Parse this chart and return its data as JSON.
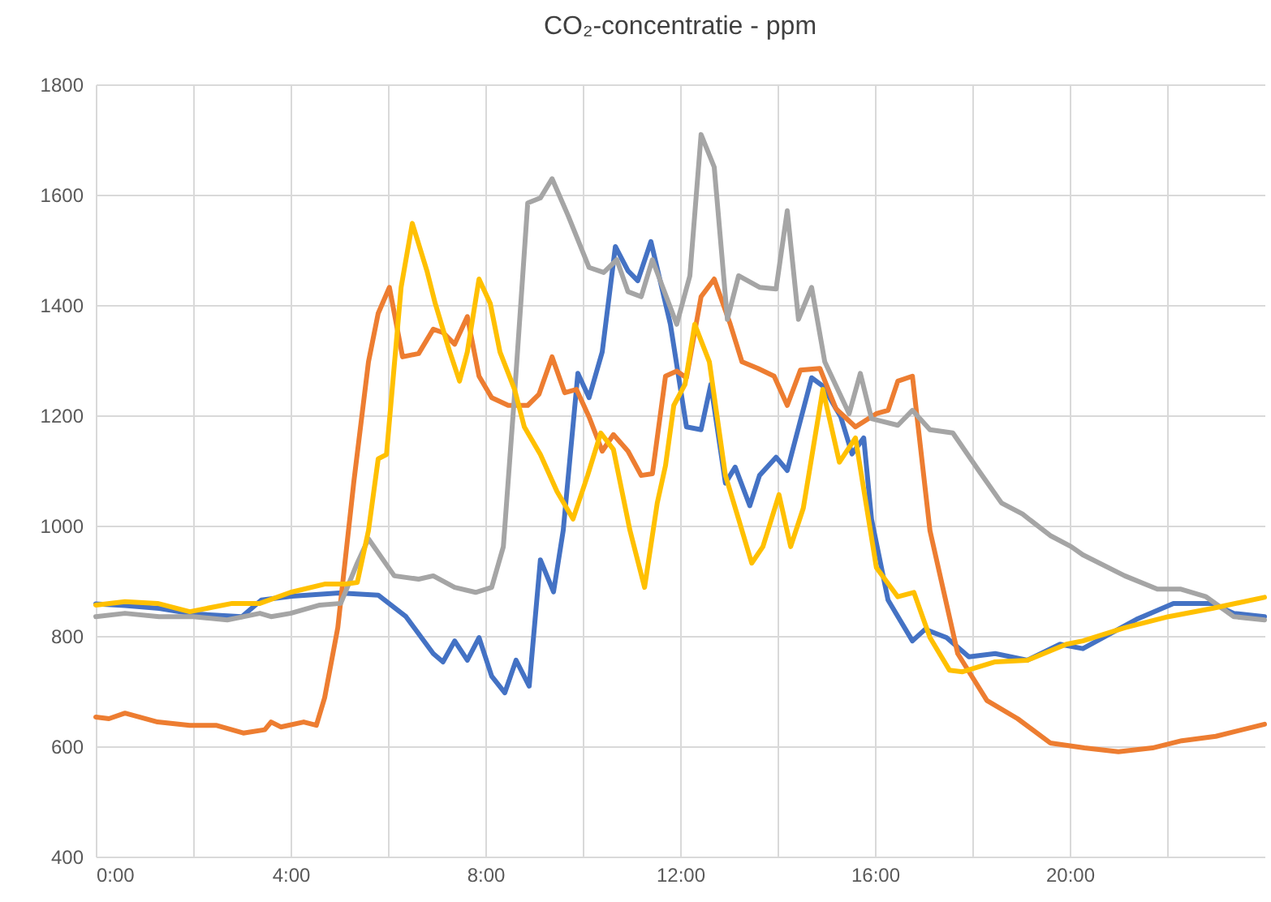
{
  "chart_data": {
    "type": "line",
    "title": "CO₂-concentratie - ppm",
    "xlim": [
      0,
      24
    ],
    "ylim": [
      400,
      1800
    ],
    "xticks": [
      {
        "value": 0,
        "label": "0:00"
      },
      {
        "value": 2,
        "label": null
      },
      {
        "value": 4,
        "label": "4:00"
      },
      {
        "value": 6,
        "label": null
      },
      {
        "value": 8,
        "label": "8:00"
      },
      {
        "value": 10,
        "label": null
      },
      {
        "value": 12,
        "label": "12:00"
      },
      {
        "value": 14,
        "label": null
      },
      {
        "value": 16,
        "label": "16:00"
      },
      {
        "value": 18,
        "label": null
      },
      {
        "value": 20,
        "label": "20:00"
      },
      {
        "value": 22,
        "label": null
      }
    ],
    "yticks": [
      400,
      600,
      800,
      1000,
      1200,
      1400,
      1600,
      1800
    ],
    "grid": true,
    "line_style": "solid",
    "series": [
      {
        "color": "#4472c4",
        "x": [
          0,
          0.6,
          1.3,
          2,
          3,
          3.4,
          4.03,
          5,
          5.8,
          6.37,
          6.93,
          7.13,
          7.37,
          7.63,
          7.87,
          8.13,
          8.4,
          8.63,
          8.9,
          9.13,
          9.4,
          9.6,
          9.9,
          10.13,
          10.4,
          10.67,
          10.93,
          11.13,
          11.4,
          11.8,
          12.13,
          12.43,
          12.63,
          12.93,
          13.13,
          13.43,
          13.63,
          13.97,
          14.2,
          14.7,
          14.93,
          15.3,
          15.53,
          15.77,
          15.93,
          16.27,
          16.77,
          17.03,
          17.47,
          17.93,
          18.47,
          19.13,
          19.8,
          20.27,
          21.37,
          22.13,
          22.93,
          23.37,
          24
        ],
        "values": [
          858,
          855,
          850,
          840,
          835,
          865,
          872,
          878,
          874,
          835,
          768,
          753,
          791,
          756,
          797,
          727,
          697,
          756,
          709,
          938,
          880,
          992,
          1276,
          1232,
          1315,
          1506,
          1462,
          1444,
          1515,
          1365,
          1179,
          1174,
          1256,
          1077,
          1106,
          1036,
          1091,
          1124,
          1100,
          1268,
          1253,
          1197,
          1130,
          1159,
          1012,
          865,
          791,
          812,
          797,
          762,
          768,
          756,
          785,
          777,
          830,
          859,
          859,
          841,
          835
        ]
      },
      {
        "color": "#ed7d31",
        "x": [
          0,
          0.27,
          0.6,
          1.27,
          1.93,
          2.47,
          3.03,
          3.47,
          3.6,
          3.8,
          4.27,
          4.53,
          4.7,
          4.97,
          5.3,
          5.6,
          5.8,
          6.03,
          6.3,
          6.63,
          6.93,
          7.13,
          7.37,
          7.63,
          7.87,
          8.13,
          8.47,
          8.87,
          9.1,
          9.37,
          9.63,
          9.87,
          10.13,
          10.4,
          10.63,
          10.93,
          11.2,
          11.43,
          11.7,
          11.93,
          12.13,
          12.43,
          12.7,
          13.03,
          13.27,
          13.6,
          13.93,
          14.2,
          14.47,
          14.87,
          15.2,
          15.6,
          16.03,
          16.27,
          16.47,
          16.77,
          17.13,
          17.7,
          18.3,
          18.93,
          19.6,
          20.3,
          21,
          21.7,
          22.3,
          23,
          24
        ],
        "values": [
          653,
          650,
          660,
          644,
          638,
          638,
          624,
          630,
          644,
          635,
          644,
          638,
          688,
          815,
          1080,
          1297,
          1385,
          1432,
          1306,
          1312,
          1356,
          1350,
          1329,
          1379,
          1271,
          1232,
          1218,
          1218,
          1238,
          1306,
          1241,
          1247,
          1197,
          1135,
          1165,
          1135,
          1091,
          1094,
          1271,
          1280,
          1268,
          1415,
          1447,
          1365,
          1297,
          1285,
          1271,
          1218,
          1282,
          1285,
          1212,
          1179,
          1203,
          1209,
          1262,
          1271,
          991,
          768,
          683,
          650,
          606,
          597,
          590,
          597,
          610,
          618,
          640
        ]
      },
      {
        "color": "#a5a5a5",
        "x": [
          0,
          0.6,
          1.3,
          2,
          2.7,
          3.37,
          3.6,
          4,
          4.6,
          5.03,
          5.37,
          5.6,
          6.13,
          6.63,
          6.93,
          7.37,
          7.8,
          8.13,
          8.37,
          8.6,
          8.87,
          9.13,
          9.37,
          9.7,
          10.13,
          10.43,
          10.7,
          10.93,
          11.2,
          11.43,
          11.93,
          12.2,
          12.43,
          12.7,
          12.97,
          13.2,
          13.63,
          13.97,
          14.2,
          14.43,
          14.7,
          14.97,
          15.47,
          15.7,
          15.93,
          16.47,
          16.77,
          17.13,
          17.6,
          18.13,
          18.6,
          19.03,
          19.6,
          20.03,
          20.27,
          21.13,
          21.8,
          22.27,
          22.8,
          23.37,
          24
        ],
        "values": [
          835,
          841,
          835,
          835,
          829,
          841,
          835,
          841,
          856,
          859,
          932,
          976,
          909,
          903,
          909,
          888,
          879,
          888,
          962,
          1238,
          1585,
          1594,
          1629,
          1562,
          1468,
          1459,
          1482,
          1424,
          1415,
          1482,
          1365,
          1453,
          1709,
          1650,
          1374,
          1453,
          1432,
          1429,
          1571,
          1374,
          1432,
          1297,
          1203,
          1276,
          1194,
          1182,
          1209,
          1174,
          1168,
          1100,
          1041,
          1021,
          982,
          962,
          947,
          909,
          885,
          885,
          871,
          835,
          829
        ]
      },
      {
        "color": "#ffc000",
        "x": [
          0,
          0.6,
          1.27,
          1.93,
          2.8,
          3.37,
          4,
          4.7,
          5.13,
          5.37,
          5.6,
          5.8,
          5.97,
          6.27,
          6.5,
          6.8,
          6.97,
          7.27,
          7.47,
          7.63,
          7.87,
          8.1,
          8.3,
          8.6,
          8.8,
          9.13,
          9.47,
          9.8,
          10.1,
          10.37,
          10.63,
          10.97,
          11.27,
          11.53,
          11.7,
          11.87,
          12.1,
          12.3,
          12.6,
          12.93,
          13.2,
          13.47,
          13.7,
          14.03,
          14.27,
          14.53,
          14.93,
          15.27,
          15.6,
          16.03,
          16.47,
          16.8,
          17.13,
          17.53,
          17.8,
          18.47,
          19.13,
          19.93,
          20.27,
          21.13,
          22.03,
          22.93,
          24
        ],
        "values": [
          856,
          862,
          859,
          844,
          859,
          859,
          879,
          894,
          894,
          897,
          991,
          1121,
          1129,
          1432,
          1548,
          1462,
          1403,
          1315,
          1262,
          1315,
          1447,
          1403,
          1315,
          1247,
          1179,
          1129,
          1062,
          1012,
          1091,
          1168,
          1138,
          991,
          888,
          1041,
          1109,
          1218,
          1256,
          1365,
          1297,
          1091,
          1012,
          932,
          962,
          1056,
          962,
          1032,
          1247,
          1115,
          1159,
          924,
          871,
          879,
          797,
          738,
          735,
          753,
          756,
          785,
          791,
          815,
          835,
          850,
          870
        ]
      }
    ]
  }
}
